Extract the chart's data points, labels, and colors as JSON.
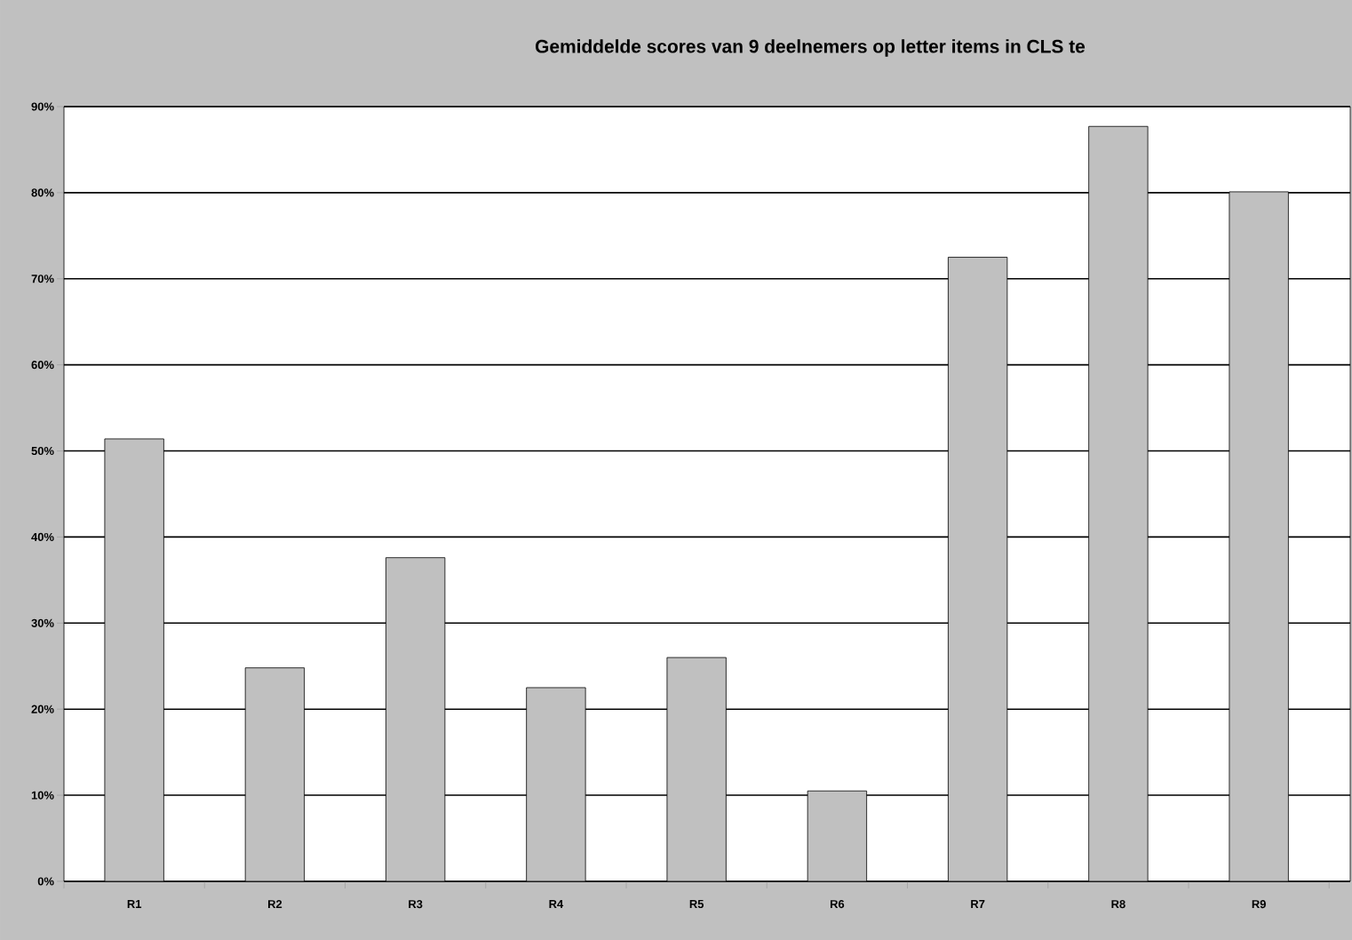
{
  "chart_data": {
    "type": "bar",
    "title": "Gemiddelde scores van 9 deelnemers op letter items in CLS te",
    "categories": [
      "R1",
      "R2",
      "R3",
      "R4",
      "R5",
      "R6",
      "R7",
      "R8",
      "R9"
    ],
    "values": [
      51.4,
      24.8,
      37.6,
      22.5,
      26.0,
      10.5,
      72.5,
      87.7,
      80.1
    ],
    "color": "#c0c0c0",
    "ylim": [
      0,
      90
    ],
    "yticks": [
      {
        "value": 0,
        "label": "0%"
      },
      {
        "value": 10,
        "label": "10%"
      },
      {
        "value": 20,
        "label": "20%"
      },
      {
        "value": 30,
        "label": "30%"
      },
      {
        "value": 40,
        "label": "40%"
      },
      {
        "value": 50,
        "label": "50%"
      },
      {
        "value": 60,
        "label": "60%"
      },
      {
        "value": 70,
        "label": "70%"
      },
      {
        "value": 80,
        "label": "80%"
      },
      {
        "value": 90,
        "label": "90%"
      }
    ],
    "grid": "y"
  }
}
